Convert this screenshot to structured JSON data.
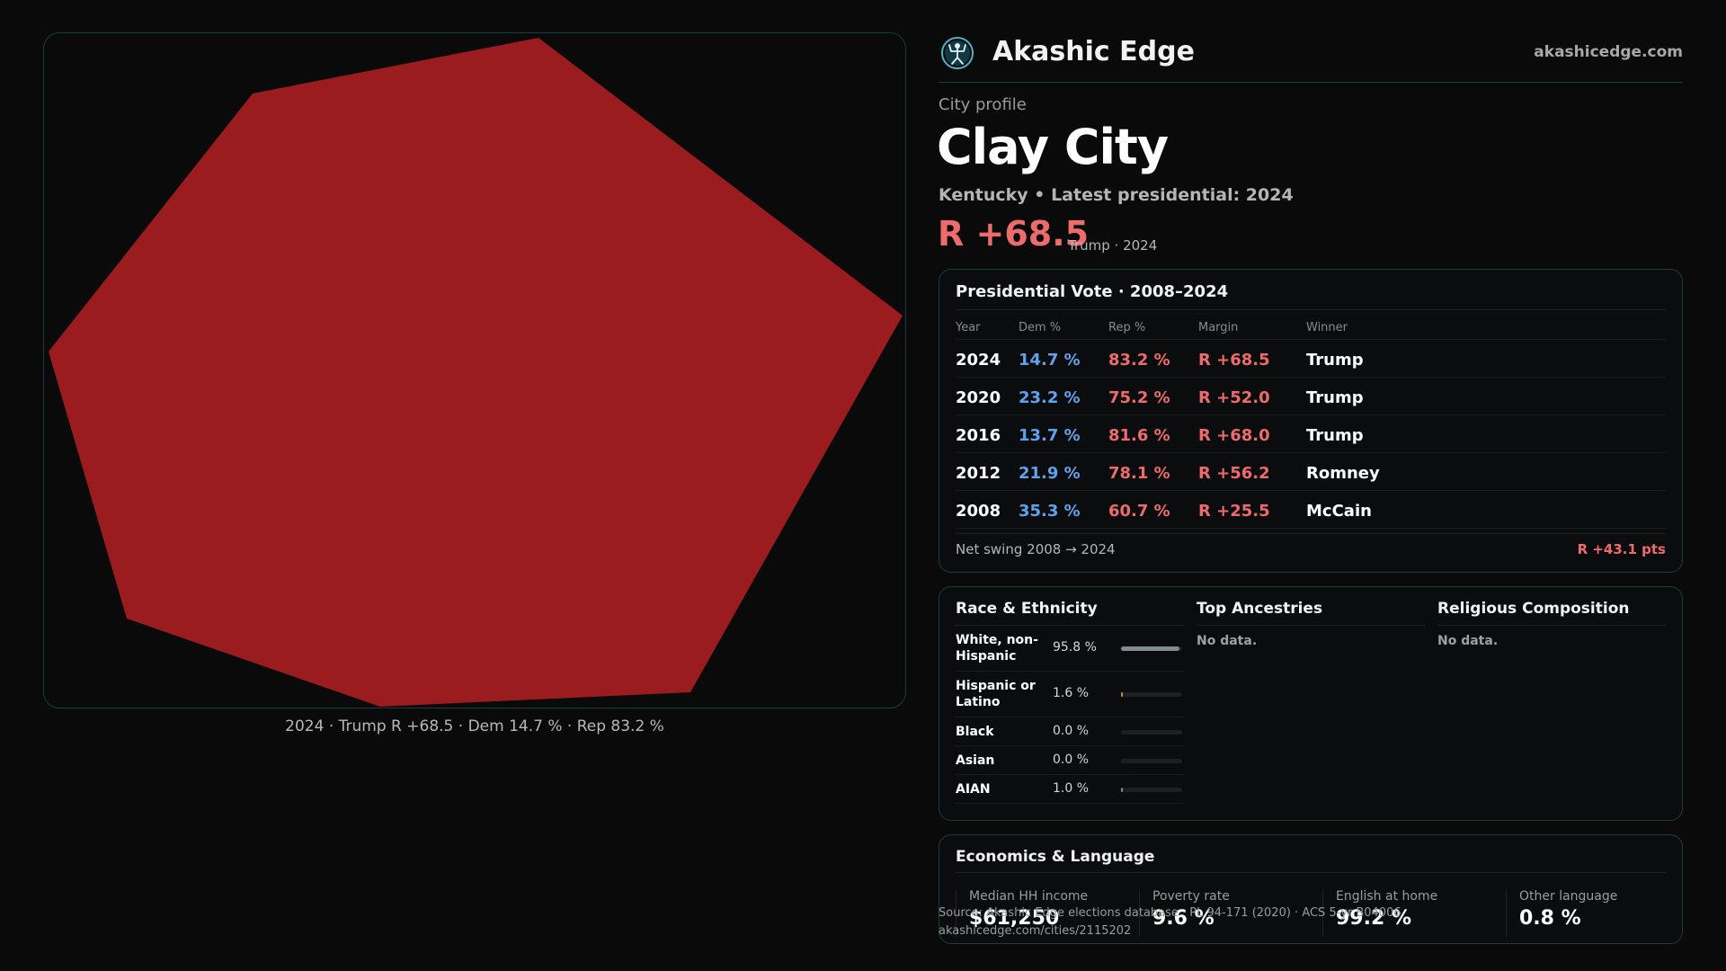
{
  "brand": {
    "name": "Akashic Edge",
    "url": "akashicedge.com"
  },
  "map": {
    "fill_color": "#9b1c1f",
    "caption": "2024 · Trump R +68.5 · Dem 14.7 % · Rep 83.2 %"
  },
  "profile": {
    "eyebrow": "City profile",
    "title": "Clay City",
    "subtitle": "Kentucky • Latest presidential: 2024",
    "margin": "R +68.5",
    "margin_note": "Trump · 2024"
  },
  "colors": {
    "dem": "#5fa3ee",
    "rep": "#ee6b6b",
    "accent_border": "#1c3b44"
  },
  "presidential": {
    "title": "Presidential Vote · 2008–2024",
    "headers": {
      "year": "Year",
      "dem": "Dem %",
      "rep": "Rep %",
      "margin": "Margin",
      "winner": "Winner"
    },
    "rows": [
      {
        "year": "2024",
        "dem": "14.7 %",
        "rep": "83.2 %",
        "margin": "R +68.5",
        "winner": "Trump"
      },
      {
        "year": "2020",
        "dem": "23.2 %",
        "rep": "75.2 %",
        "margin": "R +52.0",
        "winner": "Trump"
      },
      {
        "year": "2016",
        "dem": "13.7 %",
        "rep": "81.6 %",
        "margin": "R +68.0",
        "winner": "Trump"
      },
      {
        "year": "2012",
        "dem": "21.9 %",
        "rep": "78.1 %",
        "margin": "R +56.2",
        "winner": "Romney"
      },
      {
        "year": "2008",
        "dem": "35.3 %",
        "rep": "60.7 %",
        "margin": "R +25.5",
        "winner": "McCain"
      }
    ],
    "swing_label": "Net swing 2008 → 2024",
    "swing_value": "R +43.1 pts"
  },
  "race": {
    "title": "Race & Ethnicity",
    "rows": [
      {
        "label": "White, non-Hispanic",
        "pct": "95.8 %",
        "share": 0.958,
        "color": "#7f8a92"
      },
      {
        "label": "Hispanic or Latino",
        "pct": "1.6 %",
        "share": 0.016,
        "color": "#d08a3c"
      },
      {
        "label": "Black",
        "pct": "0.0 %",
        "share": 0.0,
        "color": "#7f8a92"
      },
      {
        "label": "Asian",
        "pct": "0.0 %",
        "share": 0.0,
        "color": "#7f8a92"
      },
      {
        "label": "AIAN",
        "pct": "1.0 %",
        "share": 0.01,
        "color": "#7f8a92"
      }
    ]
  },
  "ancestries": {
    "title": "Top Ancestries",
    "empty": "No data."
  },
  "religion": {
    "title": "Religious Composition",
    "empty": "No data."
  },
  "economics": {
    "title": "Economics & Language",
    "items": [
      {
        "label": "Median HH income",
        "value": "$61,250"
      },
      {
        "label": "Poverty rate",
        "value": "9.6 %"
      },
      {
        "label": "English at home",
        "value": "99.2 %"
      },
      {
        "label": "Other language",
        "value": "0.8 %"
      }
    ]
  },
  "source": {
    "line1": "Source: Akashic Edge elections database · PL 94-171 (2020) · ACS 5-yr B04006",
    "line2": "akashicedge.com/cities/2115202"
  }
}
